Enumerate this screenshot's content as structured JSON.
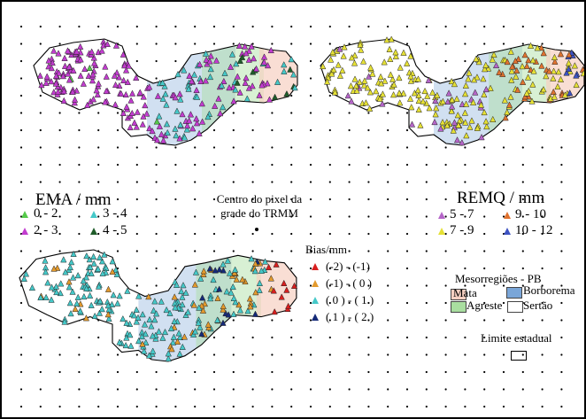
{
  "panels": [
    {
      "id": "ema",
      "title": "EMA / mm",
      "classes": [
        {
          "label": "0 - 2",
          "color": "#55c94a"
        },
        {
          "label": "3 - 4",
          "color": "#45c8c8"
        },
        {
          "label": "2 - 3",
          "color": "#c23ccf"
        },
        {
          "label": "4 - 5",
          "color": "#1f5c2a"
        }
      ]
    },
    {
      "id": "remq",
      "title": "REMQ / mm",
      "classes": [
        {
          "label": "5 - 7",
          "color": "#b565c8"
        },
        {
          "label": "9 - 10",
          "color": "#e0722f"
        },
        {
          "label": "7 - 9",
          "color": "#e5e035"
        },
        {
          "label": "10 - 12",
          "color": "#3d52c2"
        }
      ]
    },
    {
      "id": "bias",
      "title": "Bias/mm",
      "classes": [
        {
          "label": "(-2) - (-1)",
          "color": "#d81f1f"
        },
        {
          "label": "(-1) - ( 0 )",
          "color": "#e39a2d"
        },
        {
          "label": "( 0 ) - ( 1 )",
          "color": "#45c8c8"
        },
        {
          "label": "( 1 ) - ( 2 )",
          "color": "#152a78"
        }
      ]
    }
  ],
  "grid_note": "Centro do pixel da grade do TRMM",
  "mesoregions": {
    "title": "Mesorregiões - PB",
    "items": [
      {
        "label": "Mata",
        "color": "#f6d0c2"
      },
      {
        "label": "Borborema",
        "color": "#7aa6d8"
      },
      {
        "label": "Agreste",
        "color": "#a9dea0"
      },
      {
        "label": "Sertão",
        "color": "#ffffff"
      }
    ]
  },
  "state_limit": "Limite estadual"
}
